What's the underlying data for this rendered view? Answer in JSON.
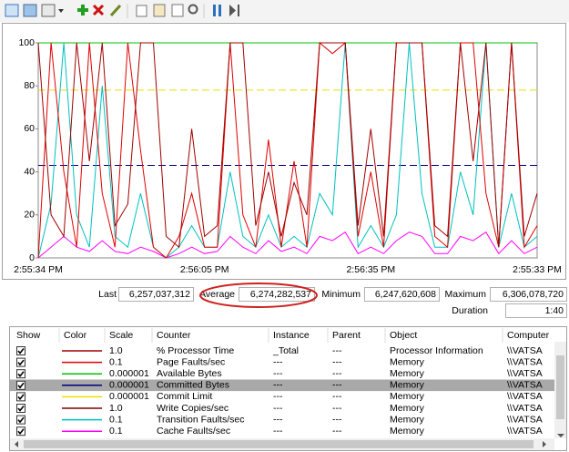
{
  "chart_data": {
    "type": "line",
    "ylim": [
      0,
      100
    ],
    "yticks": [
      0,
      20,
      40,
      60,
      80,
      100
    ],
    "xlabels": [
      "2:55:34 PM",
      "2:56:05 PM",
      "2:56:35 PM",
      "2:55:33 PM"
    ],
    "series": [
      {
        "color": "#00c000",
        "style": "solid",
        "values": [
          100,
          100,
          100,
          100,
          100,
          100,
          100,
          100,
          100,
          100,
          100,
          100,
          100,
          100,
          100,
          100,
          100,
          100,
          100,
          100,
          100,
          100,
          100,
          100,
          100,
          100,
          100,
          100,
          100,
          100,
          100,
          100,
          100,
          100,
          100,
          100,
          100,
          100,
          100,
          100
        ]
      },
      {
        "color": "#e8e000",
        "style": "dashed",
        "values": [
          78,
          78,
          78,
          78,
          78,
          78,
          78,
          78,
          78,
          78,
          78,
          78,
          78,
          78,
          78,
          78,
          78,
          78,
          78,
          78,
          78,
          78,
          78,
          78,
          78,
          78,
          78,
          78,
          78,
          78,
          78,
          78,
          78,
          78,
          78,
          78,
          78,
          78,
          78,
          78
        ]
      },
      {
        "color": "#000080",
        "style": "dashed",
        "values": [
          43,
          43,
          43,
          43,
          43,
          43,
          43,
          43,
          43,
          43,
          43,
          43,
          43,
          43,
          43,
          43,
          43,
          43,
          43,
          43,
          43,
          43,
          43,
          43,
          43,
          43,
          43,
          43,
          43,
          43,
          43,
          43,
          43,
          43,
          43,
          43,
          43,
          43,
          43,
          43
        ]
      },
      {
        "color": "#ff00ff",
        "style": "solid",
        "values": [
          0,
          5,
          10,
          5,
          3,
          8,
          3,
          2,
          5,
          3,
          0,
          2,
          5,
          2,
          3,
          10,
          5,
          2,
          8,
          3,
          5,
          2,
          10,
          8,
          12,
          2,
          5,
          2,
          8,
          12,
          10,
          2,
          2,
          10,
          8,
          12,
          2,
          8,
          2,
          5
        ]
      },
      {
        "color": "#00c0c0",
        "style": "solid",
        "values": [
          0,
          25,
          100,
          20,
          5,
          80,
          10,
          5,
          30,
          5,
          0,
          5,
          15,
          5,
          5,
          40,
          10,
          5,
          20,
          5,
          10,
          5,
          30,
          20,
          100,
          5,
          15,
          5,
          20,
          100,
          30,
          5,
          5,
          40,
          20,
          100,
          5,
          30,
          5,
          10
        ]
      },
      {
        "color": "#e00000",
        "style": "solid",
        "values": [
          0,
          100,
          40,
          5,
          100,
          30,
          5,
          100,
          50,
          5,
          0,
          10,
          30,
          5,
          5,
          100,
          20,
          5,
          55,
          5,
          45,
          5,
          100,
          95,
          100,
          10,
          40,
          5,
          100,
          100,
          100,
          10,
          5,
          100,
          100,
          30,
          5,
          100,
          5,
          15
        ]
      },
      {
        "color": "#a00000",
        "style": "solid",
        "values": [
          100,
          20,
          10,
          100,
          45,
          100,
          15,
          25,
          100,
          100,
          10,
          5,
          60,
          10,
          15,
          100,
          100,
          15,
          40,
          10,
          35,
          20,
          100,
          100,
          100,
          15,
          60,
          10,
          100,
          100,
          100,
          15,
          10,
          100,
          45,
          100,
          5,
          100,
          10,
          30
        ]
      }
    ]
  },
  "stats": {
    "last": {
      "label": "Last",
      "value": "6,257,037,312"
    },
    "average": {
      "label": "Average",
      "value": "6,274,282,537"
    },
    "minimum": {
      "label": "Minimum",
      "value": "6,247,620,608"
    },
    "maximum": {
      "label": "Maximum",
      "value": "6,306,078,720"
    },
    "duration": {
      "label": "Duration",
      "value": "1:40"
    }
  },
  "table": {
    "columns": [
      "Show",
      "Color",
      "Scale",
      "Counter",
      "Instance",
      "Parent",
      "Object",
      "Computer"
    ],
    "selected_row": 3,
    "rows": [
      {
        "color": "#a00000",
        "cells": [
          "1.0",
          "% Processor Time",
          "_Total",
          "---",
          "Processor Information",
          "\\\\VATSA"
        ]
      },
      {
        "color": "#e00000",
        "cells": [
          "0.1",
          "Page Faults/sec",
          "---",
          "---",
          "Memory",
          "\\\\VATSA"
        ]
      },
      {
        "color": "#00c000",
        "cells": [
          "0.000001",
          "Available Bytes",
          "---",
          "---",
          "Memory",
          "\\\\VATSA"
        ]
      },
      {
        "color": "#000080",
        "cells": [
          "0.000001",
          "Committed Bytes",
          "---",
          "---",
          "Memory",
          "\\\\VATSA"
        ]
      },
      {
        "color": "#e8e000",
        "cells": [
          "0.000001",
          "Commit Limit",
          "---",
          "---",
          "Memory",
          "\\\\VATSA"
        ]
      },
      {
        "color": "#800000",
        "cells": [
          "1.0",
          "Write Copies/sec",
          "---",
          "---",
          "Memory",
          "\\\\VATSA"
        ]
      },
      {
        "color": "#00c0c0",
        "cells": [
          "0.1",
          "Transition Faults/sec",
          "---",
          "---",
          "Memory",
          "\\\\VATSA"
        ]
      },
      {
        "color": "#ff00ff",
        "cells": [
          "0.1",
          "Cache Faults/sec",
          "---",
          "---",
          "Memory",
          "\\\\VATSA"
        ]
      }
    ]
  }
}
